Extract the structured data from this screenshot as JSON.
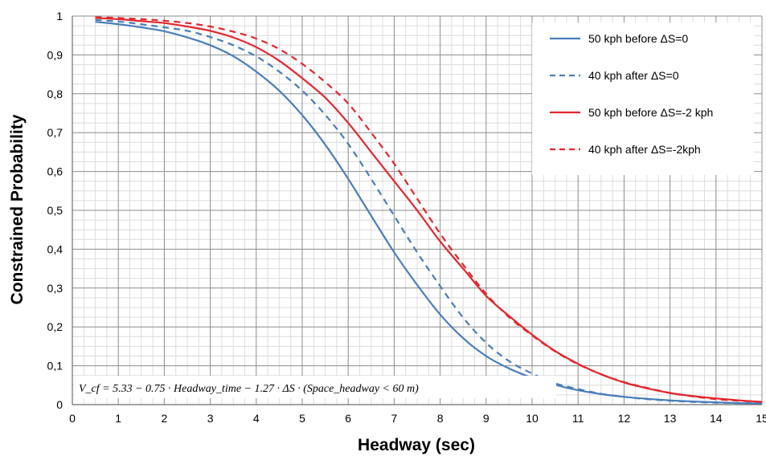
{
  "chart_data": {
    "type": "line",
    "title": "",
    "xlabel": "Headway (sec)",
    "ylabel": "Constrained Probability",
    "xlim": [
      0,
      15
    ],
    "ylim": [
      0,
      1
    ],
    "xticks": [
      "0",
      "1",
      "2",
      "3",
      "4",
      "5",
      "6",
      "7",
      "8",
      "9",
      "10",
      "11",
      "12",
      "13",
      "14",
      "15"
    ],
    "yticks": [
      "0",
      "0,1",
      "0,2",
      "0,3",
      "0,4",
      "0,5",
      "0,6",
      "0,7",
      "0,8",
      "0,9",
      "1"
    ],
    "grid": "major and minor",
    "legend_position": "top-right",
    "annotation": "V_cf = 5.33 − 0.75 · Headway_time − 1.27 · ΔS · (Space_headway < 60 m)",
    "series": [
      {
        "name": "50 kph before ΔS=0",
        "color": "#4a7ebb",
        "style": "solid",
        "x": [
          0.5,
          1,
          1.5,
          2,
          2.5,
          3,
          3.5,
          4,
          4.5,
          5,
          5.5,
          6,
          6.5,
          7,
          7.5,
          8,
          8.5,
          9,
          9.5,
          10,
          10.5,
          11,
          11.5,
          12,
          12.5,
          13,
          13.5,
          14,
          14.5,
          15
        ],
        "y": [
          0.985,
          0.979,
          0.971,
          0.961,
          0.945,
          0.925,
          0.897,
          0.857,
          0.808,
          0.745,
          0.669,
          0.581,
          0.486,
          0.392,
          0.308,
          0.232,
          0.171,
          0.125,
          0.093,
          0.069,
          0.051,
          0.037,
          0.027,
          0.02,
          0.015,
          0.011,
          0.008,
          0.006,
          0.004,
          0.003
        ]
      },
      {
        "name": "40 kph after ΔS=0",
        "color": "#4a7ebb",
        "style": "dashed",
        "x": [
          0.5,
          1,
          1.5,
          2,
          2.5,
          3,
          3.5,
          4,
          4.5,
          5,
          5.5,
          6,
          6.5,
          7,
          7.5,
          8,
          8.5,
          9,
          9.5,
          10,
          10.5,
          11,
          11.5,
          12,
          12.5,
          13,
          13.5,
          14,
          14.5,
          15
        ],
        "y": [
          0.99,
          0.986,
          0.979,
          0.971,
          0.962,
          0.946,
          0.925,
          0.896,
          0.857,
          0.808,
          0.746,
          0.671,
          0.581,
          0.486,
          0.392,
          0.305,
          0.224,
          0.159,
          0.112,
          0.08,
          0.055,
          0.04,
          0.028,
          0.02,
          0.014,
          0.01,
          0.007,
          0.005,
          0.004,
          0.003
        ]
      },
      {
        "name": "50 kph before ΔS=-2 kph",
        "color": "#e3262d",
        "style": "solid",
        "x": [
          0.5,
          1,
          1.5,
          2,
          2.5,
          3,
          3.5,
          4,
          4.5,
          5,
          5.5,
          6,
          6.5,
          7,
          7.5,
          8,
          8.5,
          9,
          9.5,
          10,
          10.5,
          11,
          11.5,
          12,
          12.5,
          13,
          13.5,
          14,
          14.5,
          15
        ],
        "y": [
          0.995,
          0.992,
          0.987,
          0.982,
          0.973,
          0.962,
          0.945,
          0.92,
          0.885,
          0.84,
          0.79,
          0.725,
          0.65,
          0.575,
          0.5,
          0.42,
          0.35,
          0.28,
          0.228,
          0.18,
          0.138,
          0.105,
          0.078,
          0.057,
          0.042,
          0.03,
          0.022,
          0.016,
          0.011,
          0.007
        ]
      },
      {
        "name": "40 kph after ΔS=-2kph",
        "color": "#e3262d",
        "style": "dashed",
        "x": [
          0.5,
          1,
          1.5,
          2,
          2.5,
          3,
          3.5,
          4,
          4.5,
          5,
          5.5,
          6,
          6.5,
          7,
          7.5,
          8,
          8.5,
          9,
          9.5,
          10,
          10.5,
          11,
          11.5,
          12,
          12.5,
          13,
          13.5,
          14,
          14.5,
          15
        ],
        "y": [
          0.997,
          0.995,
          0.992,
          0.988,
          0.982,
          0.973,
          0.96,
          0.942,
          0.915,
          0.877,
          0.83,
          0.775,
          0.7,
          0.62,
          0.53,
          0.44,
          0.36,
          0.285,
          0.225,
          0.178,
          0.137,
          0.104,
          0.078,
          0.058,
          0.043,
          0.03,
          0.021,
          0.014,
          0.01,
          0.007
        ]
      }
    ]
  }
}
